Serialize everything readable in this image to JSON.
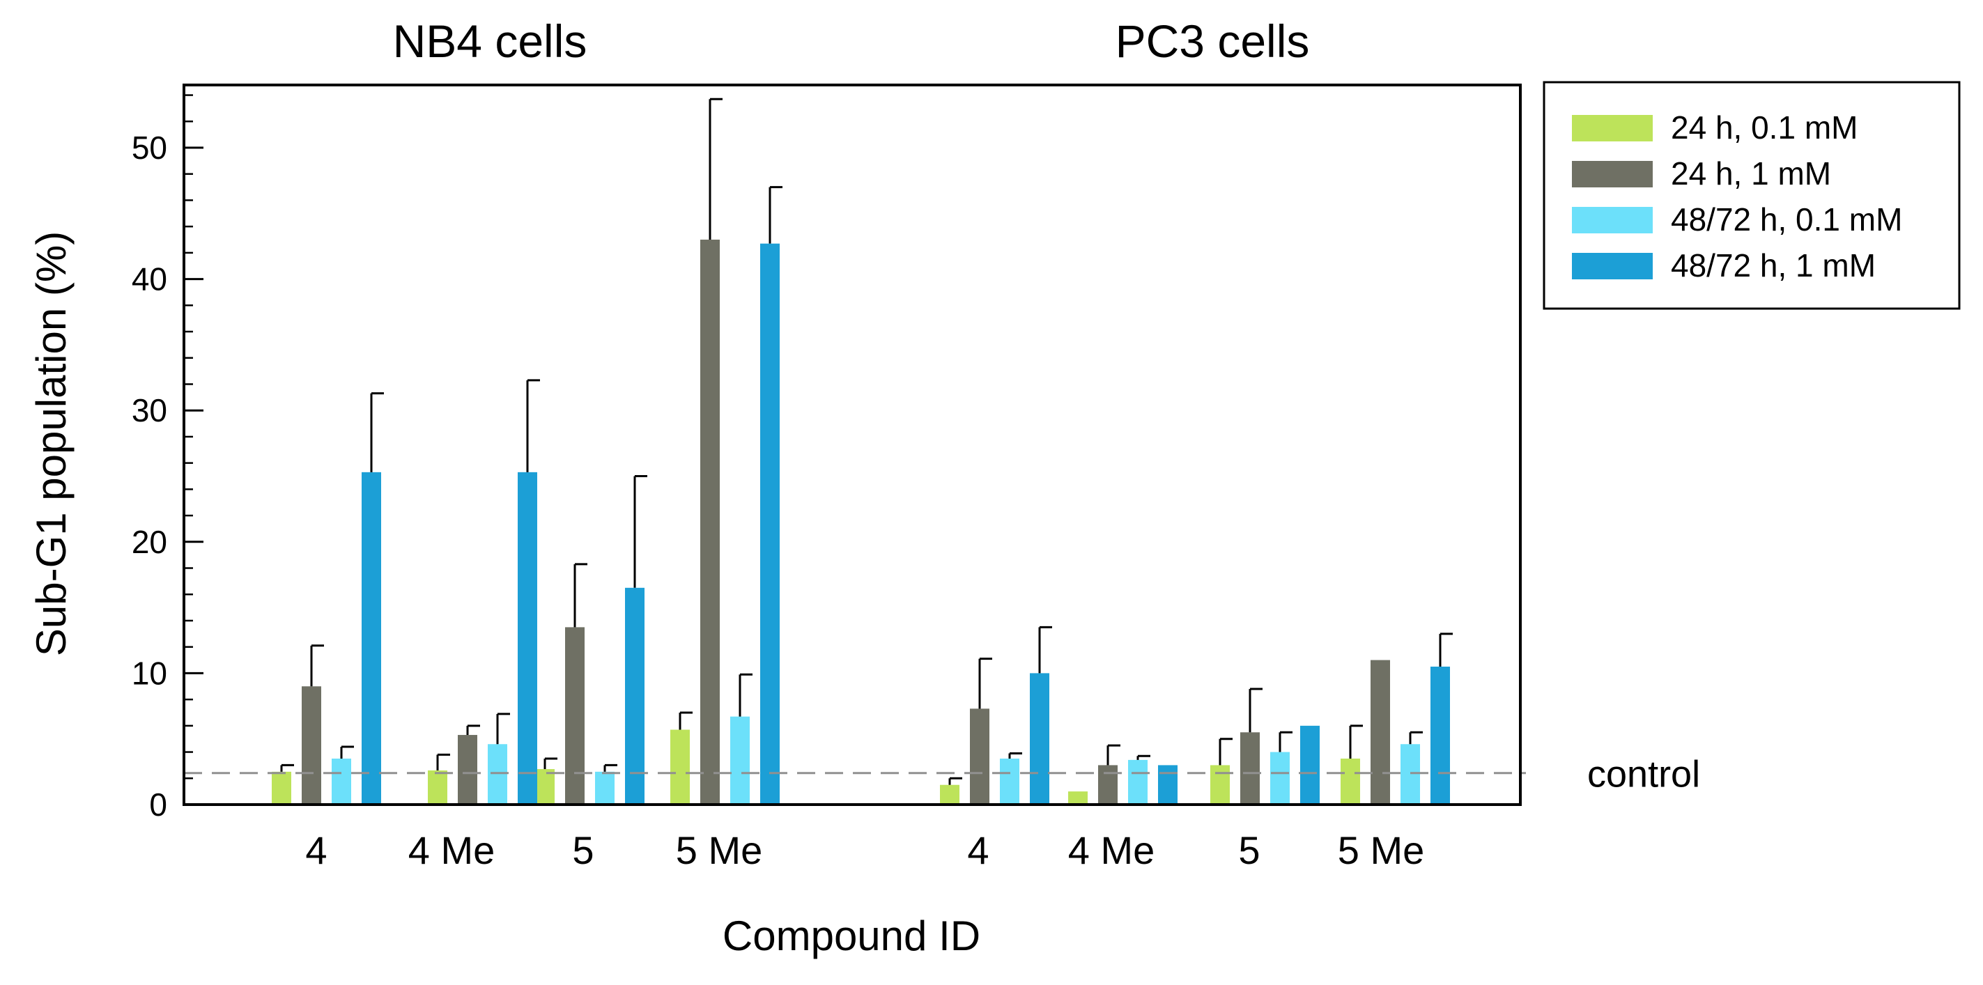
{
  "chart_data": {
    "type": "bar",
    "group_titles": [
      "NB4 cells",
      "PC3 cells"
    ],
    "categories": [
      "4",
      "4 Me",
      "5",
      "5 Me"
    ],
    "xlabel": "Compound ID",
    "ylabel": "Sub-G1 population  (%)",
    "ylim": [
      0,
      55
    ],
    "yticks": [
      0,
      10,
      20,
      30,
      40,
      50
    ],
    "minor_tick_step": 2,
    "legend_position": "right",
    "series": [
      {
        "name": "24 h, 0.1 mM",
        "color": "#bde35a",
        "values": [
          [
            2.5,
            2.6,
            2.7,
            5.7
          ],
          [
            1.5,
            1.0,
            3.0,
            3.5
          ]
        ],
        "errors": [
          [
            0.5,
            1.2,
            0.8,
            1.3
          ],
          [
            0.5,
            0,
            2.0,
            2.5
          ]
        ]
      },
      {
        "name": "24 h, 1 mM",
        "color": "#6f7064",
        "values": [
          [
            9.0,
            5.3,
            13.5,
            43.0
          ],
          [
            7.3,
            3.0,
            5.5,
            11.0
          ]
        ],
        "errors": [
          [
            3.1,
            0.7,
            4.8,
            10.7
          ],
          [
            3.8,
            1.5,
            3.3,
            0
          ]
        ]
      },
      {
        "name": "48/72 h, 0.1 mM",
        "color": "#6ce0fa",
        "values": [
          [
            3.5,
            4.6,
            2.5,
            6.7
          ],
          [
            3.5,
            3.4,
            4.0,
            4.6
          ]
        ],
        "errors": [
          [
            0.9,
            2.3,
            0.5,
            3.2
          ],
          [
            0.4,
            0.3,
            1.5,
            0.9
          ]
        ]
      },
      {
        "name": "48/72 h, 1 mM",
        "color": "#1c9fd6",
        "values": [
          [
            25.3,
            25.3,
            16.5,
            42.7
          ],
          [
            10.0,
            3.0,
            6.0,
            10.5
          ]
        ],
        "errors": [
          [
            6.0,
            7.0,
            8.5,
            4.3
          ],
          [
            3.5,
            0,
            0,
            2.5
          ]
        ]
      }
    ],
    "reference_line": {
      "label": "control",
      "value": 2.4
    }
  }
}
